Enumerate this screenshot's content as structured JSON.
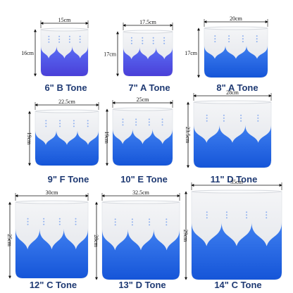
{
  "items": [
    {
      "label": "6\" B Tone",
      "width": "15cm",
      "height": "16cm"
    },
    {
      "label": "7\" A Tone",
      "width": "17.5cm",
      "height": "17cm"
    },
    {
      "label": "8\" A Tone",
      "width": "20cm",
      "height": "17cm"
    },
    {
      "label": "9\" F Tone",
      "width": "22.5cm",
      "height": "19cm"
    },
    {
      "label": "10\" E Tone",
      "width": "25cm",
      "height": "19cm"
    },
    {
      "label": "11\" D Tone",
      "width": "28cm",
      "height": "23.5cm"
    },
    {
      "label": "12\" C Tone",
      "width": "30cm",
      "height": "25cm"
    },
    {
      "label": "13\" D Tone",
      "width": "32.5cm",
      "height": "28cm"
    },
    {
      "label": "14\" C Tone",
      "width": "35cm",
      "height": "29cm"
    }
  ]
}
